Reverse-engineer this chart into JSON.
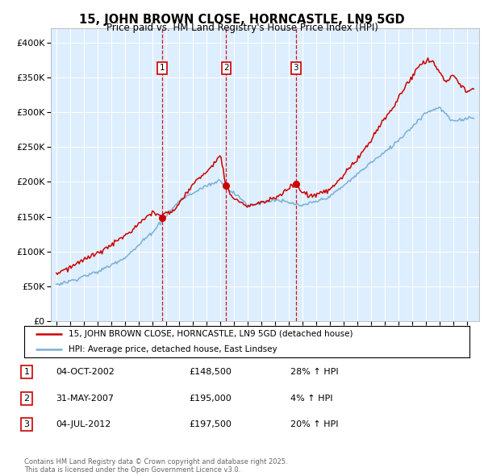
{
  "title": "15, JOHN BROWN CLOSE, HORNCASTLE, LN9 5GD",
  "subtitle": "Price paid vs. HM Land Registry's House Price Index (HPI)",
  "background_color": "#ddeeff",
  "grid_color": "#ffffff",
  "ylim": [
    0,
    420000
  ],
  "yticks": [
    0,
    50000,
    100000,
    150000,
    200000,
    250000,
    300000,
    350000,
    400000
  ],
  "ytick_labels": [
    "£0",
    "£50K",
    "£100K",
    "£150K",
    "£200K",
    "£250K",
    "£300K",
    "£350K",
    "£400K"
  ],
  "xlim_start": 1994.6,
  "xlim_end": 2025.9,
  "sale_dates": [
    2002.75,
    2007.42,
    2012.5
  ],
  "sale_prices": [
    148500,
    195000,
    197500
  ],
  "sale_labels": [
    "1",
    "2",
    "3"
  ],
  "legend_line1": "15, JOHN BROWN CLOSE, HORNCASTLE, LN9 5GD (detached house)",
  "legend_line2": "HPI: Average price, detached house, East Lindsey",
  "table_entries": [
    {
      "num": "1",
      "date": "04-OCT-2002",
      "price": "£148,500",
      "change": "28% ↑ HPI"
    },
    {
      "num": "2",
      "date": "31-MAY-2007",
      "price": "£195,000",
      "change": "4% ↑ HPI"
    },
    {
      "num": "3",
      "date": "04-JUL-2012",
      "price": "£197,500",
      "change": "20% ↑ HPI"
    }
  ],
  "footer": "Contains HM Land Registry data © Crown copyright and database right 2025.\nThis data is licensed under the Open Government Licence v3.0.",
  "red_color": "#cc0000",
  "blue_color": "#7bafd4",
  "dashed_color": "#cc0000"
}
